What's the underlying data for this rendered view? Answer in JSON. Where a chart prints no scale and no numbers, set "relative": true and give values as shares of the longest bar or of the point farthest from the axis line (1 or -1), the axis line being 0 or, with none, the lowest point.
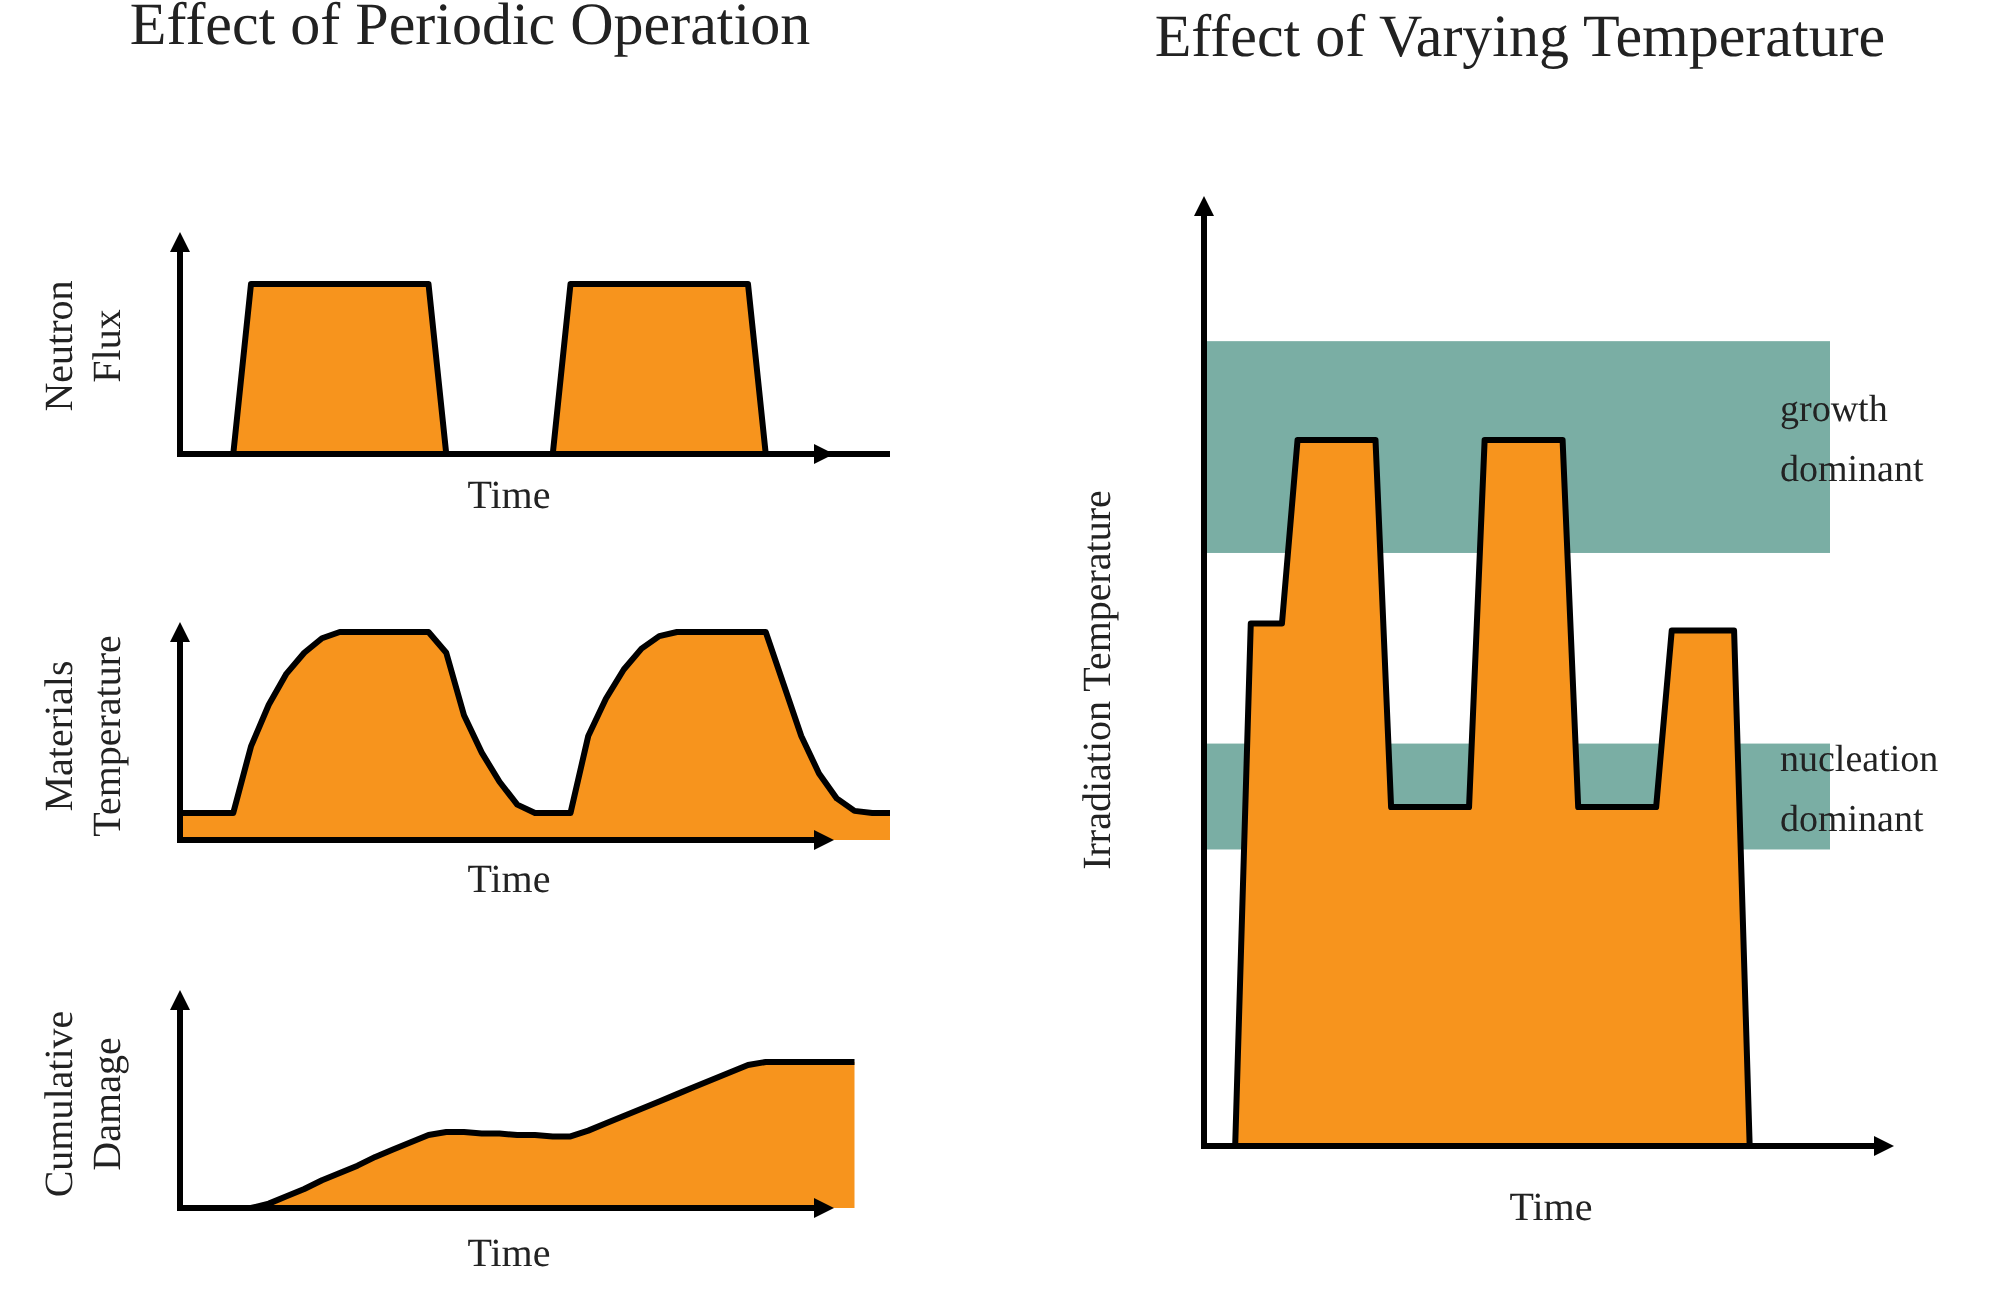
{
  "chart_data": [
    {
      "type": "area",
      "title": "Effect of Periodic Operation",
      "ylabel": "Neutron Flux",
      "xlabel": "Time",
      "relative": true,
      "categories": [
        null,
        null,
        null,
        null,
        null,
        null,
        null,
        null,
        null,
        null,
        null,
        null,
        null,
        null,
        null,
        null,
        null,
        null,
        null,
        null,
        null,
        null,
        null,
        null,
        null,
        null,
        null,
        null,
        null,
        null,
        null,
        null,
        null,
        null,
        null,
        null,
        null,
        null,
        null,
        null,
        null
      ],
      "series": [
        {
          "color": "#f7941d",
          "values": [
            0,
            0,
            0,
            0,
            1,
            1,
            1,
            1,
            1,
            1,
            1,
            1,
            1,
            1,
            1,
            0,
            0,
            0,
            0,
            0,
            0,
            0,
            1,
            1,
            1,
            1,
            1,
            1,
            1,
            1,
            1,
            1,
            1,
            0,
            0,
            0,
            0,
            0,
            0,
            0,
            0
          ]
        }
      ]
    },
    {
      "type": "area",
      "ylabel": "Materials Temperature",
      "xlabel": "Time",
      "relative": true,
      "categories": [
        null,
        null,
        null,
        null,
        null,
        null,
        null,
        null,
        null,
        null,
        null,
        null,
        null,
        null,
        null,
        null,
        null,
        null,
        null,
        null,
        null,
        null,
        null,
        null,
        null,
        null,
        null,
        null,
        null,
        null,
        null,
        null,
        null,
        null,
        null,
        null,
        null,
        null,
        null,
        null,
        null
      ],
      "series": [
        {
          "color": "#f7941d",
          "values": [
            0.13,
            0.13,
            0.13,
            0.13,
            0.45,
            0.65,
            0.8,
            0.9,
            0.97,
            1,
            1,
            1,
            1,
            1,
            1,
            0.9,
            0.6,
            0.42,
            0.28,
            0.17,
            0.13,
            0.13,
            0.13,
            0.5,
            0.68,
            0.82,
            0.92,
            0.98,
            1,
            1,
            1,
            1,
            1,
            1,
            0.75,
            0.5,
            0.32,
            0.2,
            0.14,
            0.13,
            0.13
          ]
        }
      ]
    },
    {
      "type": "area",
      "ylabel": "Cumulative Damage",
      "xlabel": "Time",
      "relative": true,
      "categories": [
        null,
        null,
        null,
        null,
        null,
        null,
        null,
        null,
        null,
        null,
        null,
        null,
        null,
        null,
        null,
        null,
        null,
        null,
        null,
        null,
        null,
        null,
        null,
        null,
        null,
        null,
        null,
        null,
        null,
        null,
        null,
        null,
        null,
        null,
        null,
        null,
        null,
        null,
        null,
        null,
        null
      ],
      "series": [
        {
          "color": "#f7941d",
          "values": [
            0,
            0,
            0,
            0,
            0,
            0.03,
            0.08,
            0.13,
            0.19,
            0.24,
            0.29,
            0.35,
            0.4,
            0.45,
            0.5,
            0.52,
            0.52,
            0.51,
            0.51,
            0.5,
            0.5,
            0.49,
            0.49,
            0.53,
            0.58,
            0.63,
            0.68,
            0.73,
            0.78,
            0.83,
            0.88,
            0.93,
            0.98,
            1,
            1,
            1,
            1,
            1,
            1,
            null,
            null
          ]
        }
      ]
    },
    {
      "type": "area",
      "title": "Effect of Varying Temperature",
      "ylabel": "Irradiation Temperature",
      "xlabel": "Time",
      "relative": true,
      "categories": [
        null,
        null,
        null,
        null,
        null,
        null,
        null,
        null,
        null,
        null,
        null,
        null,
        null,
        null,
        null,
        null,
        null,
        null,
        null,
        null,
        null,
        null,
        null,
        null,
        null,
        null,
        null,
        null,
        null,
        null,
        null,
        null,
        null,
        null,
        null,
        null,
        null,
        null,
        null,
        null,
        null,
        null,
        null,
        null,
        null
      ],
      "bands": [
        {
          "axis": "y",
          "from": 0.84,
          "to": 1.14,
          "label": "growth dominant",
          "color": "#7aaea4"
        },
        {
          "axis": "y",
          "from": 0.42,
          "to": 0.57,
          "label": "nucleation dominant",
          "color": "#7aaea4"
        }
      ],
      "series": [
        {
          "color": "#f7941d",
          "values": [
            0,
            0,
            0,
            0.74,
            0.74,
            0.74,
            1,
            1,
            1,
            1,
            1,
            1,
            0.48,
            0.48,
            0.48,
            0.48,
            0.48,
            0.48,
            1,
            1,
            1,
            1,
            1,
            1,
            0.48,
            0.48,
            0.48,
            0.48,
            0.48,
            0.48,
            0.73,
            0.73,
            0.73,
            0.73,
            0.73,
            0,
            0,
            0,
            0,
            0,
            0,
            0,
            0,
            0,
            null
          ]
        }
      ]
    }
  ]
}
